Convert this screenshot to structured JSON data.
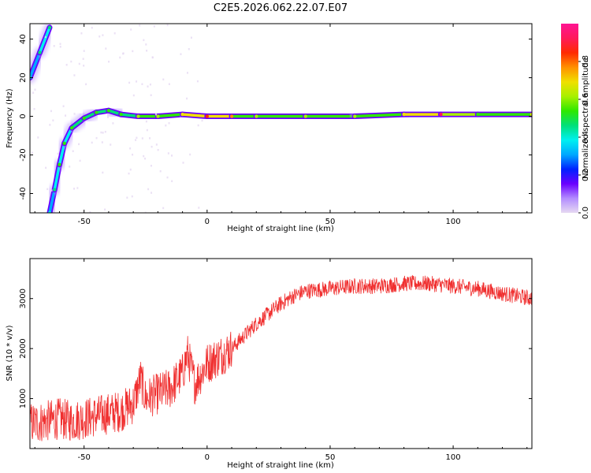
{
  "title": "C2E5.2026.062.22.07.E07",
  "chart_data": [
    {
      "type": "heatmap",
      "xlabel": "Height of straight line (km)",
      "ylabel": "Frequency (Hz)",
      "xlim": [
        -72,
        132
      ],
      "ylim": [
        -50,
        48
      ],
      "xticks": [
        -50,
        0,
        50,
        100
      ],
      "yticks": [
        -40,
        -20,
        0,
        20,
        40
      ],
      "colorbar": {
        "label": "Normalized spectral amplitude",
        "range": [
          0,
          1
        ],
        "ticks": [
          "0.0",
          "0.2",
          "0.4",
          "0.6",
          "0.8"
        ],
        "colors": [
          "#e6d9f2",
          "#b38cff",
          "#6a00ff",
          "#0022ff",
          "#00a8ff",
          "#00f0f0",
          "#00e07a",
          "#2ee800",
          "#a8f000",
          "#f0e000",
          "#ff9000",
          "#ff2a00",
          "#ff1a5a",
          "#ff1493"
        ]
      },
      "ridge": [
        {
          "x": -72,
          "y": 20,
          "amp": 0.4
        },
        {
          "x": -68,
          "y": 33,
          "amp": 0.45
        },
        {
          "x": -64,
          "y": 46,
          "amp": 0.45
        },
        {
          "x": -64,
          "y": -50,
          "amp": 0.4
        },
        {
          "x": -62,
          "y": -38,
          "amp": 0.45
        },
        {
          "x": -60,
          "y": -25,
          "amp": 0.5
        },
        {
          "x": -58,
          "y": -14,
          "amp": 0.5
        },
        {
          "x": -55,
          "y": -6,
          "amp": 0.5
        },
        {
          "x": -50,
          "y": -1,
          "amp": 0.55
        },
        {
          "x": -45,
          "y": 2,
          "amp": 0.55
        },
        {
          "x": -40,
          "y": 3,
          "amp": 0.55
        },
        {
          "x": -35,
          "y": 1,
          "amp": 0.55
        },
        {
          "x": -28,
          "y": 0,
          "amp": 0.6
        },
        {
          "x": -20,
          "y": 0,
          "amp": 0.6
        },
        {
          "x": -10,
          "y": 1,
          "amp": 0.7
        },
        {
          "x": 0,
          "y": 0,
          "amp": 0.85
        },
        {
          "x": 10,
          "y": 0,
          "amp": 0.75
        },
        {
          "x": 20,
          "y": 0,
          "amp": 0.6
        },
        {
          "x": 40,
          "y": 0,
          "amp": 0.6
        },
        {
          "x": 60,
          "y": 0,
          "amp": 0.65
        },
        {
          "x": 80,
          "y": 1,
          "amp": 0.7
        },
        {
          "x": 95,
          "y": 1,
          "amp": 0.9
        },
        {
          "x": 110,
          "y": 1,
          "amp": 0.55
        },
        {
          "x": 132,
          "y": 1,
          "amp": 0.7
        }
      ]
    },
    {
      "type": "line",
      "xlabel": "Height of straight line (km)",
      "ylabel": "SNR (10 * v/v)",
      "xlim": [
        -72,
        132
      ],
      "ylim": [
        0,
        3800
      ],
      "xticks": [
        -50,
        0,
        50,
        100
      ],
      "yticks": [
        1000,
        2000,
        3000
      ],
      "line_color": "#f03030",
      "x": [
        -72,
        -65,
        -60,
        -55,
        -50,
        -45,
        -40,
        -35,
        -30,
        -27,
        -25,
        -20,
        -15,
        -10,
        -8,
        -5,
        0,
        5,
        10,
        15,
        20,
        25,
        30,
        35,
        40,
        50,
        60,
        70,
        80,
        90,
        100,
        110,
        120,
        132
      ],
      "y": [
        500,
        550,
        600,
        550,
        600,
        650,
        700,
        750,
        900,
        1400,
        1000,
        1100,
        1200,
        1500,
        1900,
        1300,
        1700,
        1850,
        2000,
        2250,
        2500,
        2700,
        2900,
        3050,
        3150,
        3200,
        3250,
        3250,
        3300,
        3300,
        3250,
        3200,
        3100,
        3000
      ]
    }
  ]
}
